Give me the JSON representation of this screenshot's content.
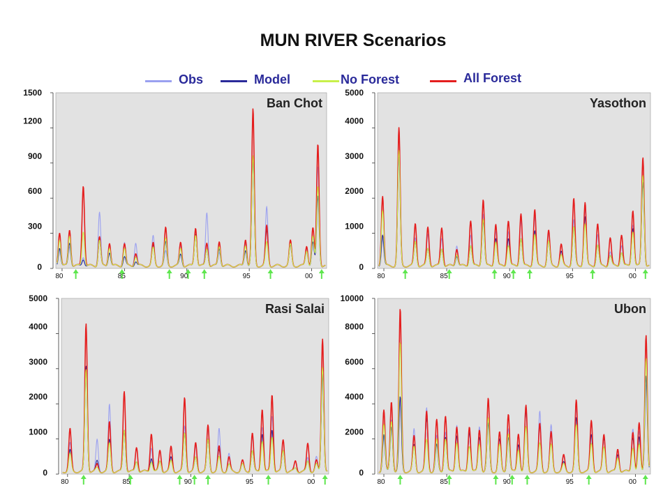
{
  "title": "MUN RIVER Scenarios",
  "legend": [
    {
      "label": "Obs",
      "color": "#9aa0f0"
    },
    {
      "label": "Model",
      "color": "#2a2a9a"
    },
    {
      "label": "No Forest",
      "color": "#c8f04a"
    },
    {
      "label": "All Forest",
      "color": "#e41e1e"
    }
  ],
  "colors": {
    "plot_bg": "#e2e2e2",
    "arrow": "#5fe64f"
  },
  "chart_data": [
    {
      "type": "line",
      "title": "Ban Chot",
      "ylim": [
        0,
        1500
      ],
      "yticks": [
        "0",
        "300",
        "600",
        "900",
        "1200",
        "1500"
      ],
      "xticks": [
        "80",
        "85",
        "90",
        "95",
        "00"
      ],
      "xrange": [
        1979.5,
        2001.2
      ],
      "arrows": [
        1981.1,
        1984.8,
        1988.6,
        1990.1,
        1991.4,
        1996.7,
        2000.8
      ],
      "peaks": [
        [
          1979.8,
          150,
          160,
          230,
          290
        ],
        [
          1980.6,
          170,
          200,
          260,
          310
        ],
        [
          1981.7,
          80,
          60,
          300,
          690
        ],
        [
          1983.0,
          460,
          220,
          220,
          250
        ],
        [
          1983.8,
          200,
          120,
          160,
          200
        ],
        [
          1985.0,
          200,
          80,
          150,
          190
        ],
        [
          1985.9,
          200,
          40,
          80,
          110
        ],
        [
          1987.3,
          250,
          170,
          150,
          190
        ],
        [
          1988.3,
          120,
          200,
          230,
          320
        ],
        [
          1989.5,
          170,
          100,
          150,
          200
        ],
        [
          1990.7,
          280,
          280,
          270,
          330
        ],
        [
          1991.6,
          460,
          150,
          150,
          200
        ],
        [
          1992.6,
          120,
          150,
          170,
          210
        ],
        [
          1994.7,
          200,
          140,
          180,
          230
        ],
        [
          1995.3,
          900,
          920,
          930,
          1330
        ],
        [
          1996.4,
          500,
          300,
          200,
          340
        ],
        [
          1998.3,
          200,
          170,
          180,
          210
        ],
        [
          1999.6,
          120,
          160,
          130,
          170
        ],
        [
          2000.1,
          230,
          200,
          250,
          320
        ],
        [
          2000.5,
          850,
          600,
          680,
          1040
        ]
      ]
    },
    {
      "type": "line",
      "title": "Yasothon",
      "ylim": [
        0,
        5000
      ],
      "yticks": [
        "0",
        "1000",
        "2000",
        "3000",
        "4000",
        "5000"
      ],
      "xticks": [
        "80",
        "85",
        "90",
        "95",
        "00"
      ],
      "xrange": [
        1979.5,
        2001.2
      ],
      "arrows": [
        1981.7,
        1985.2,
        1988.8,
        1990.3,
        1991.6,
        1996.6,
        2000.8
      ],
      "peaks": [
        [
          1979.9,
          800,
          900,
          1600,
          2000
        ],
        [
          1981.2,
          3000,
          3200,
          3250,
          3900
        ],
        [
          1982.5,
          800,
          700,
          700,
          1200
        ],
        [
          1983.5,
          900,
          500,
          500,
          1100
        ],
        [
          1984.6,
          800,
          500,
          500,
          1100
        ],
        [
          1985.8,
          600,
          300,
          350,
          500
        ],
        [
          1986.9,
          900,
          600,
          600,
          1300
        ],
        [
          1987.9,
          1500,
          1300,
          1350,
          1900
        ],
        [
          1988.9,
          1000,
          800,
          700,
          1200
        ],
        [
          1989.9,
          1000,
          800,
          600,
          1300
        ],
        [
          1990.9,
          1300,
          800,
          800,
          1500
        ],
        [
          1992.0,
          1400,
          1000,
          900,
          1600
        ],
        [
          1993.1,
          900,
          700,
          700,
          1000
        ],
        [
          1994.1,
          600,
          400,
          300,
          600
        ],
        [
          1995.1,
          1300,
          1100,
          1100,
          1900
        ],
        [
          1996.0,
          1600,
          1400,
          1200,
          1800
        ],
        [
          1997.0,
          900,
          600,
          600,
          1200
        ],
        [
          1998.0,
          400,
          300,
          300,
          800
        ],
        [
          1998.9,
          600,
          400,
          400,
          900
        ],
        [
          1999.8,
          1200,
          1100,
          1000,
          1600
        ],
        [
          2000.6,
          2500,
          2400,
          2600,
          3100
        ]
      ]
    },
    {
      "type": "line",
      "title": "Rasi Salai",
      "ylim": [
        0,
        5000
      ],
      "yticks": [
        "0",
        "1000",
        "2000",
        "3000",
        "4000",
        "5000"
      ],
      "xticks": [
        "80",
        "85",
        "90",
        "95",
        "00"
      ],
      "xrange": [
        1979.5,
        2001.2
      ],
      "arrows": [
        1981.3,
        1985.1,
        1989.1,
        1990.3,
        1991.4,
        1996.3,
        2000.9
      ],
      "peaks": [
        [
          1980.2,
          800,
          600,
          500,
          1200
        ],
        [
          1981.5,
          3000,
          3000,
          2900,
          4200
        ],
        [
          1982.4,
          900,
          300,
          100,
          200
        ],
        [
          1983.4,
          1900,
          900,
          800,
          1400
        ],
        [
          1984.6,
          1200,
          1200,
          1200,
          2300
        ],
        [
          1985.6,
          700,
          300,
          300,
          700
        ],
        [
          1986.8,
          700,
          400,
          300,
          1100
        ],
        [
          1987.5,
          600,
          300,
          300,
          600
        ],
        [
          1988.4,
          700,
          400,
          300,
          700
        ],
        [
          1989.5,
          1300,
          1100,
          1100,
          2100
        ],
        [
          1990.4,
          700,
          400,
          400,
          800
        ],
        [
          1991.4,
          1200,
          900,
          900,
          1300
        ],
        [
          1992.3,
          1200,
          600,
          400,
          700
        ],
        [
          1993.1,
          500,
          200,
          200,
          400
        ],
        [
          1994.2,
          300,
          200,
          200,
          300
        ],
        [
          1995.0,
          1000,
          600,
          600,
          1100
        ],
        [
          1995.8,
          1300,
          1100,
          900,
          1800
        ],
        [
          1996.6,
          1600,
          1200,
          1000,
          2200
        ],
        [
          1997.5,
          900,
          600,
          600,
          900
        ],
        [
          1998.5,
          300,
          100,
          100,
          300
        ],
        [
          1999.5,
          400,
          300,
          300,
          800
        ],
        [
          2000.2,
          400,
          200,
          200,
          300
        ],
        [
          2000.7,
          3000,
          2800,
          3000,
          3800
        ]
      ]
    },
    {
      "type": "line",
      "title": "Ubon",
      "ylim": [
        0,
        10000
      ],
      "yticks": [
        "0",
        "2000",
        "4000",
        "6000",
        "8000",
        "10000"
      ],
      "xticks": [
        "80",
        "85",
        "90",
        "95",
        "00"
      ],
      "xrange": [
        1979.5,
        2001.2
      ],
      "arrows": [
        1981.3,
        1985.2,
        1988.9,
        1990.2,
        1991.4,
        1996.3,
        2000.8
      ],
      "peaks": [
        [
          1980.0,
          2000,
          2100,
          2700,
          3500
        ],
        [
          1980.6,
          3000,
          2600,
          2900,
          4000
        ],
        [
          1981.3,
          4200,
          4200,
          7300,
          9200
        ],
        [
          1982.4,
          2400,
          1500,
          1400,
          2000
        ],
        [
          1983.4,
          3600,
          3000,
          1800,
          3400
        ],
        [
          1984.2,
          2000,
          1500,
          1800,
          2900
        ],
        [
          1984.9,
          2300,
          2000,
          1900,
          3200
        ],
        [
          1985.8,
          2700,
          2100,
          1700,
          2600
        ],
        [
          1986.8,
          2300,
          2300,
          1500,
          2600
        ],
        [
          1987.6,
          2600,
          2000,
          1600,
          2400
        ],
        [
          1988.3,
          2900,
          2700,
          3000,
          4100
        ],
        [
          1989.2,
          2100,
          1800,
          1500,
          2200
        ],
        [
          1989.9,
          2500,
          2000,
          2200,
          3300
        ],
        [
          1990.7,
          2200,
          1600,
          1300,
          2200
        ],
        [
          1991.3,
          3700,
          3400,
          2500,
          3700
        ],
        [
          1992.4,
          3400,
          2700,
          1600,
          2700
        ],
        [
          1993.3,
          2600,
          2100,
          1500,
          2200
        ],
        [
          1994.3,
          800,
          500,
          400,
          900
        ],
        [
          1995.3,
          3500,
          3000,
          2600,
          4000
        ],
        [
          1996.5,
          2700,
          2100,
          1600,
          2900
        ],
        [
          1997.5,
          2000,
          1900,
          1400,
          2100
        ],
        [
          1998.6,
          1300,
          1000,
          800,
          1300
        ],
        [
          1999.8,
          2500,
          2000,
          1400,
          2300
        ],
        [
          2000.3,
          2200,
          1900,
          1500,
          2700
        ],
        [
          2000.85,
          5000,
          5500,
          6500,
          7800
        ]
      ]
    }
  ]
}
